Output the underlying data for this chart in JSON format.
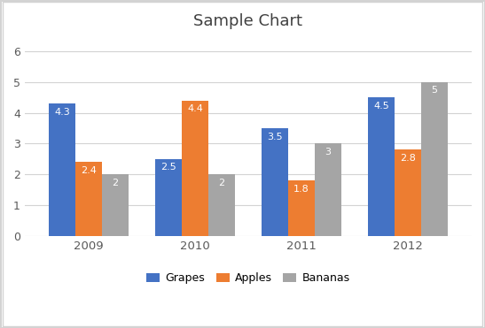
{
  "title": "Sample Chart",
  "categories": [
    "2009",
    "2010",
    "2011",
    "2012"
  ],
  "series": [
    {
      "name": "Grapes",
      "values": [
        4.3,
        2.5,
        3.5,
        4.5
      ],
      "color": "#4472C4"
    },
    {
      "name": "Apples",
      "values": [
        2.4,
        4.4,
        1.8,
        2.8
      ],
      "color": "#ED7D31"
    },
    {
      "name": "Bananas",
      "values": [
        2.0,
        2.0,
        3.0,
        5.0
      ],
      "color": "#A5A5A5"
    }
  ],
  "ylim": [
    0,
    6.5
  ],
  "yticks": [
    0,
    1,
    2,
    3,
    4,
    5,
    6
  ],
  "bar_width": 0.25,
  "label_fontsize": 8,
  "title_fontsize": 13,
  "legend_fontsize": 9,
  "background_color": "#FFFFFF",
  "grid_color": "#D3D3D3",
  "label_color": "#FFFFFF",
  "tick_color": "#595959",
  "border_color": "#D3D3D3"
}
